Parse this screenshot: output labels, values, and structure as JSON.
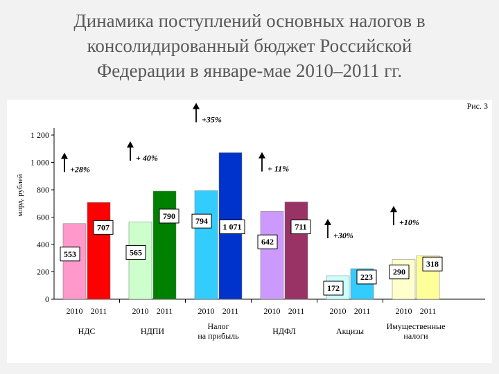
{
  "page": {
    "title_lines": [
      "Динамика поступлений основных налогов в",
      "консолидированный бюджет Российской",
      "Федерации в январе-мае 2010–2011 гг."
    ]
  },
  "chart_data": {
    "type": "bar",
    "figure_label": "Рис. 3",
    "title": "",
    "xlabel": "",
    "ylabel": "млрд. рублей",
    "ylim": [
      0,
      1200
    ],
    "yticks": [
      0,
      200,
      400,
      600,
      800,
      1000,
      1200
    ],
    "ytick_labels": [
      "0",
      "200",
      "400",
      "600",
      "800",
      "1 000",
      "1 200"
    ],
    "grid": false,
    "legend": "none",
    "year_labels": [
      "2010",
      "2011"
    ],
    "categories": [
      {
        "name": [
          "НДС"
        ],
        "values": [
          553,
          707
        ],
        "value_labels": [
          "553",
          "707"
        ],
        "change": "+28%",
        "colors": [
          "#ff99cc",
          "#ff0000"
        ]
      },
      {
        "name": [
          "НДПИ"
        ],
        "values": [
          565,
          790
        ],
        "value_labels": [
          "565",
          "790"
        ],
        "change": "+ 40%",
        "colors": [
          "#ccffcc",
          "#008000"
        ]
      },
      {
        "name": [
          "Налог",
          "на прибыль"
        ],
        "values": [
          794,
          1071
        ],
        "value_labels": [
          "794",
          "1 071"
        ],
        "change": "+35%",
        "colors": [
          "#33ccff",
          "#0033cc"
        ]
      },
      {
        "name": [
          "НДФЛ"
        ],
        "values": [
          642,
          711
        ],
        "value_labels": [
          "642",
          "711"
        ],
        "change": "+ 11%",
        "colors": [
          "#cc99ff",
          "#993366"
        ]
      },
      {
        "name": [
          "Акцизы"
        ],
        "values": [
          172,
          223
        ],
        "value_labels": [
          "172",
          "223"
        ],
        "change": "+30%",
        "colors": [
          "#ccffff",
          "#33ccff"
        ]
      },
      {
        "name": [
          "Имущественные",
          "налоги"
        ],
        "values": [
          290,
          318
        ],
        "value_labels": [
          "290",
          "318"
        ],
        "change": "+10%",
        "colors": [
          "#ffffcc",
          "#ffff99"
        ]
      }
    ]
  }
}
